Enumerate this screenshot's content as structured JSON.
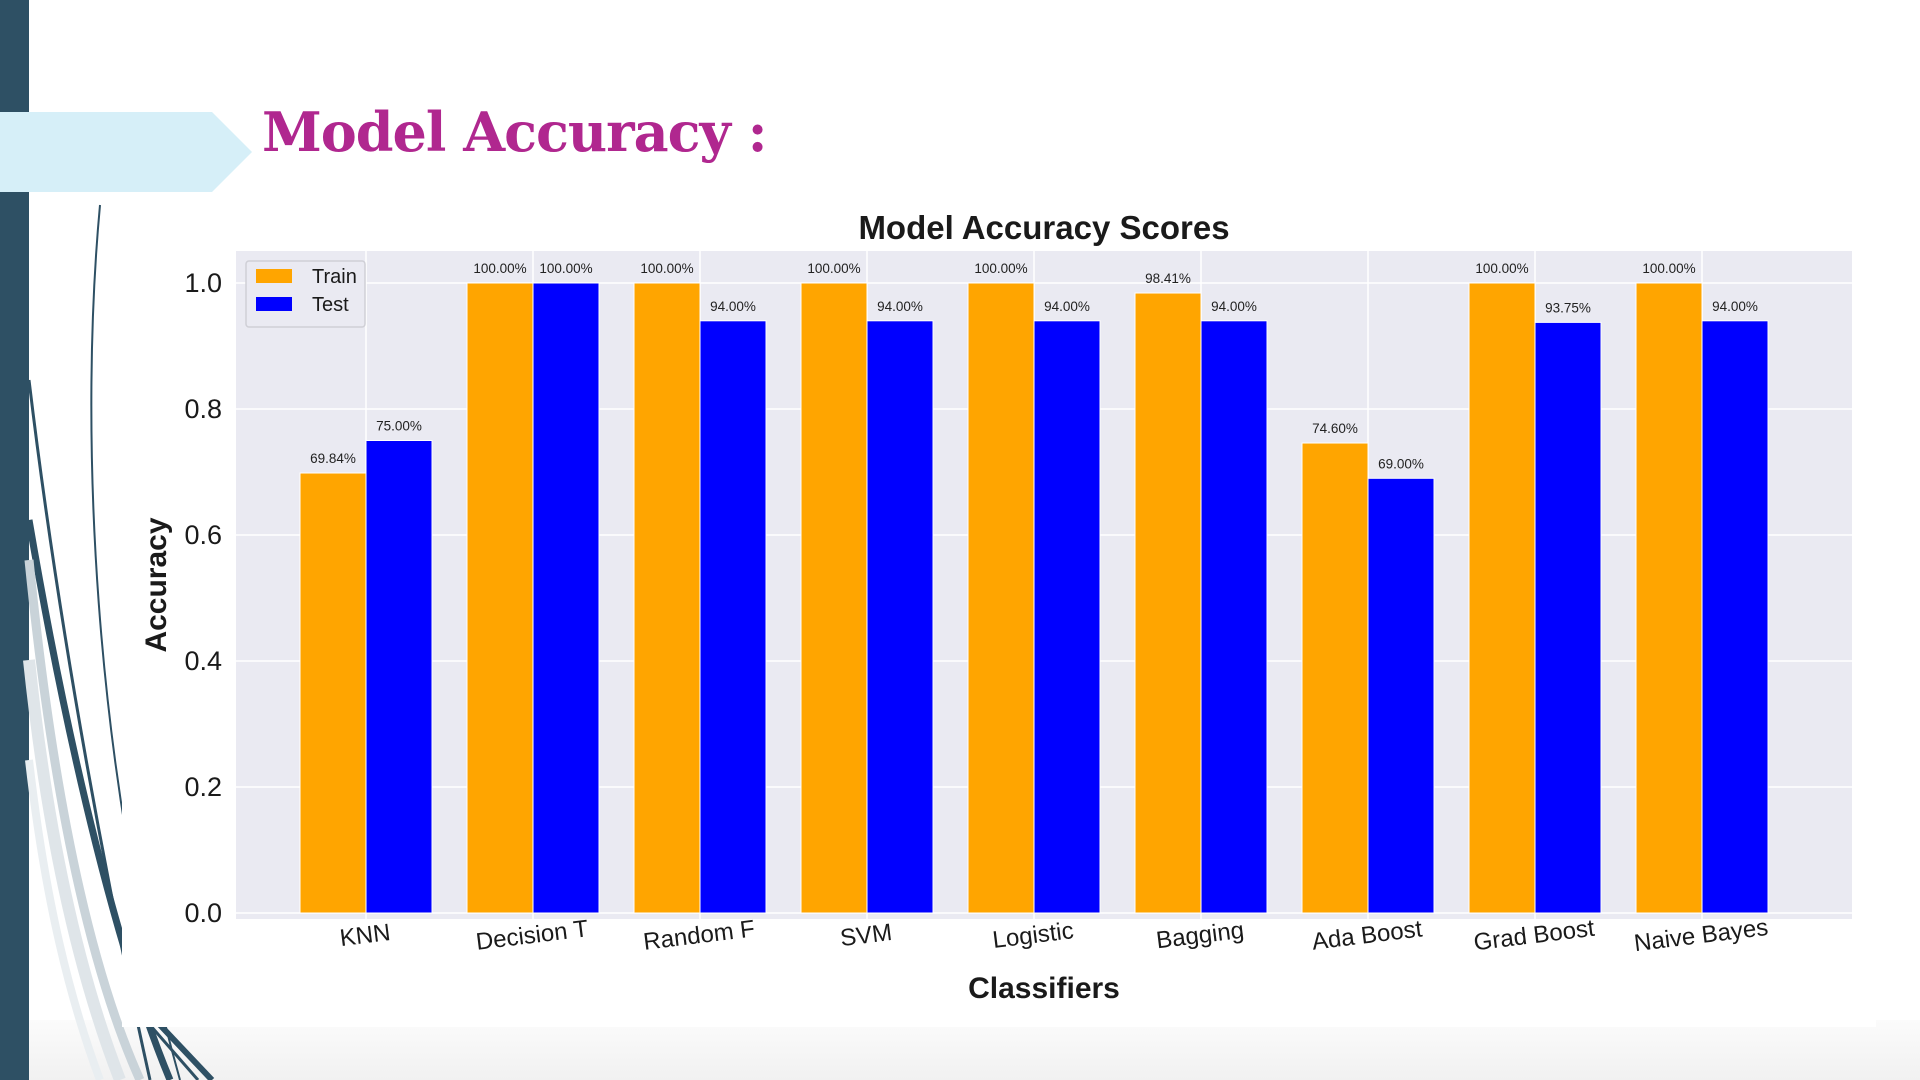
{
  "slide": {
    "title": "Model Accuracy :",
    "colors": {
      "title": "#b0278f",
      "left_bar": "#2e5064",
      "accent_arrow": "#d6eff8"
    }
  },
  "chart_data": {
    "type": "bar",
    "title": "Model Accuracy Scores",
    "xlabel": "Classifiers",
    "ylabel": "Accuracy",
    "ylim": [
      0,
      1.05
    ],
    "yticks": [
      "0.0",
      "0.2",
      "0.4",
      "0.6",
      "0.8",
      "1.0"
    ],
    "grid": true,
    "legend_position": "top-left",
    "categories": [
      "KNN",
      "Decision T",
      "Random F",
      "SVM",
      "Logistic",
      "Bagging",
      "Ada Boost",
      "Grad Boost",
      "Naive Bayes"
    ],
    "series": [
      {
        "name": "Train",
        "color": "#ffa500",
        "values": [
          0.6984,
          1.0,
          1.0,
          1.0,
          1.0,
          0.9841,
          0.746,
          1.0,
          1.0
        ],
        "labels": [
          "69.84%",
          "100.00%",
          "100.00%",
          "100.00%",
          "100.00%",
          "98.41%",
          "74.60%",
          "100.00%",
          "100.00%"
        ]
      },
      {
        "name": "Test",
        "color": "#0000ff",
        "values": [
          0.75,
          1.0,
          0.94,
          0.94,
          0.94,
          0.94,
          0.69,
          0.9375,
          0.94
        ],
        "labels": [
          "75.00%",
          "100.00%",
          "94.00%",
          "94.00%",
          "94.00%",
          "94.00%",
          "69.00%",
          "93.75%",
          "94.00%"
        ]
      }
    ]
  }
}
